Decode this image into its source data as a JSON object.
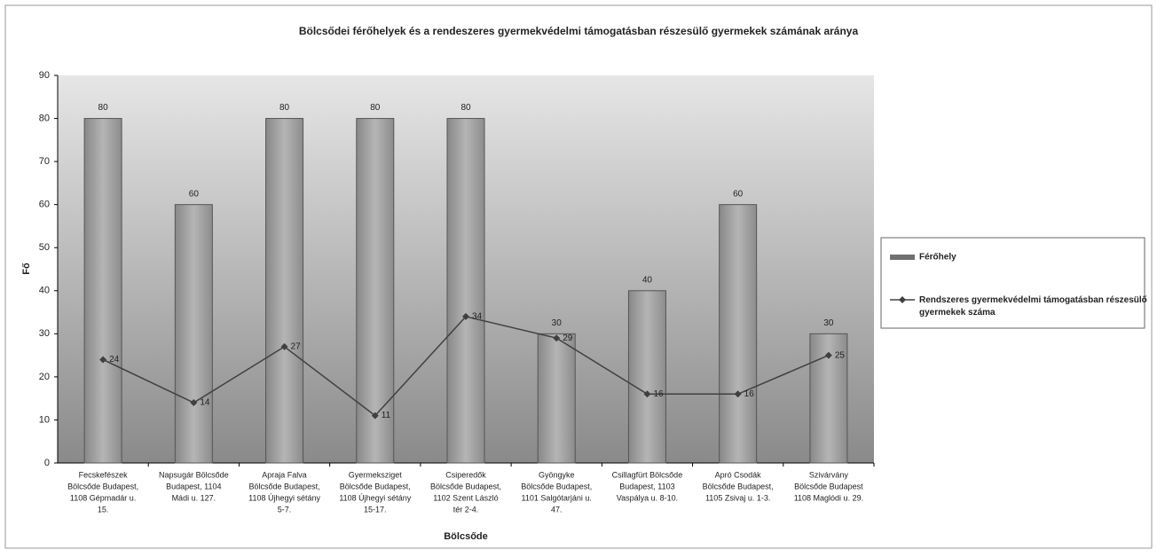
{
  "chart_data": {
    "type": "bar",
    "title": "Bölcsődei férőhelyek és a rendeszeres gyermekvédelmi támogatásban részesülő gyermekek számának aránya",
    "x_label": "Bölcsőde",
    "y_label": "Fő",
    "categories": [
      [
        "Fecskefészek",
        "Bölcsőde Budapest,",
        "1108 Gépmadár u.",
        "15."
      ],
      [
        "Napsugár Bölcsőde",
        "Budapest, 1104",
        "Mádi u. 127."
      ],
      [
        "Apraja Falva",
        "Bölcsőde Budapest,",
        "1108 Újhegyi sétány",
        "5-7."
      ],
      [
        "Gyermeksziget",
        "Bölcsőde Budapest,",
        "1108 Újhegyi sétány",
        "15-17."
      ],
      [
        "Csiperedők",
        "Bölcsőde Budapest,",
        "1102 Szent László",
        "tér 2-4."
      ],
      [
        "Gyöngyke",
        "Bölcsőde Budapest,",
        "1101 Salgótarjáni u.",
        "47."
      ],
      [
        "Csillagfürt Bölcsőde",
        "Budapest, 1103",
        "Vaspálya u. 8-10."
      ],
      [
        "Apró Csodák",
        "Bölcsőde Budapest,",
        "1105 Zsivaj u. 1-3."
      ],
      [
        "Szivárvány",
        "Bölcsőde Budapest",
        "1108 Maglódi u. 29."
      ]
    ],
    "series": [
      {
        "name": "Férőhely",
        "type": "bar",
        "color": "#a6a6a6",
        "values": [
          80,
          60,
          80,
          80,
          80,
          30,
          40,
          60,
          30
        ]
      },
      {
        "name": "Rendszeres gyermekvédelmi támogatásban részesülő gyermekek száma",
        "type": "line",
        "color": "#404040",
        "values": [
          24,
          14,
          27,
          11,
          34,
          29,
          16,
          16,
          25
        ]
      }
    ],
    "ylim": [
      0,
      90
    ],
    "yticks": [
      0,
      10,
      20,
      30,
      40,
      50,
      60,
      70,
      80,
      90
    ],
    "legend": "right"
  }
}
